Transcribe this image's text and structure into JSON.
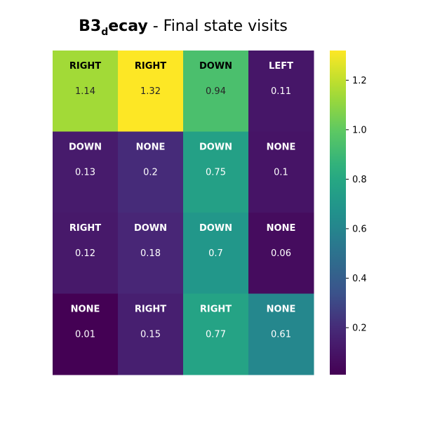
{
  "chart_data": {
    "type": "heatmap",
    "title": {
      "main": "B3",
      "subscript": "d",
      "suffix": "ecay",
      "rest": " - Final state visits"
    },
    "rows": 4,
    "cols": 4,
    "values": [
      [
        1.14,
        1.32,
        0.94,
        0.11
      ],
      [
        0.13,
        0.2,
        0.75,
        0.1
      ],
      [
        0.12,
        0.18,
        0.7,
        0.06
      ],
      [
        0.01,
        0.15,
        0.77,
        0.61
      ]
    ],
    "value_labels": [
      [
        "1.14",
        "1.32",
        "0.94",
        "0.11"
      ],
      [
        "0.13",
        "0.2",
        "0.75",
        "0.1"
      ],
      [
        "0.12",
        "0.18",
        "0.7",
        "0.06"
      ],
      [
        "0.01",
        "0.15",
        "0.77",
        "0.61"
      ]
    ],
    "actions": [
      [
        "RIGHT",
        "RIGHT",
        "DOWN",
        "LEFT"
      ],
      [
        "DOWN",
        "NONE",
        "DOWN",
        "NONE"
      ],
      [
        "RIGHT",
        "DOWN",
        "DOWN",
        "NONE"
      ],
      [
        "NONE",
        "RIGHT",
        "RIGHT",
        "NONE"
      ]
    ],
    "colormap": "viridis",
    "vmin": 0.01,
    "vmax": 1.32,
    "colorbar": {
      "ticks": [
        0.2,
        0.4,
        0.6,
        0.8,
        1.0,
        1.2
      ],
      "tick_labels": [
        "0.2",
        "0.4",
        "0.6",
        "0.8",
        "1.0",
        "1.2"
      ]
    },
    "grid": false,
    "xlabel": "",
    "ylabel": ""
  }
}
